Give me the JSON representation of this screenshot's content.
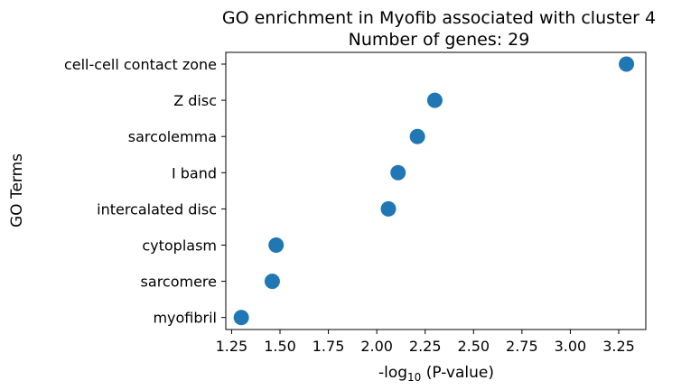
{
  "chart_data": {
    "type": "scatter",
    "title": "GO enrichment in Myofib associated with cluster 4",
    "subtitle": "Number of genes: 29",
    "xlabel_prefix": "-log",
    "xlabel_subscript": "10",
    "xlabel_suffix": " (P-value)",
    "ylabel": "GO Terms",
    "xlim": [
      1.22,
      3.39
    ],
    "xticks": [
      1.25,
      1.5,
      1.75,
      2.0,
      2.25,
      2.5,
      2.75,
      3.0,
      3.25
    ],
    "xtick_labels": [
      "1.25",
      "1.50",
      "1.75",
      "2.00",
      "2.25",
      "2.50",
      "2.75",
      "3.00",
      "3.25"
    ],
    "categories": [
      "cell-cell contact zone",
      "Z disc",
      "sarcolemma",
      "I band",
      "intercalated disc",
      "cytoplasm",
      "sarcomere",
      "myofibril"
    ],
    "values": [
      3.29,
      2.3,
      2.21,
      2.11,
      2.06,
      1.48,
      1.46,
      1.3
    ],
    "marker_color": "#1f77b4",
    "grid": false,
    "legend": "none"
  }
}
